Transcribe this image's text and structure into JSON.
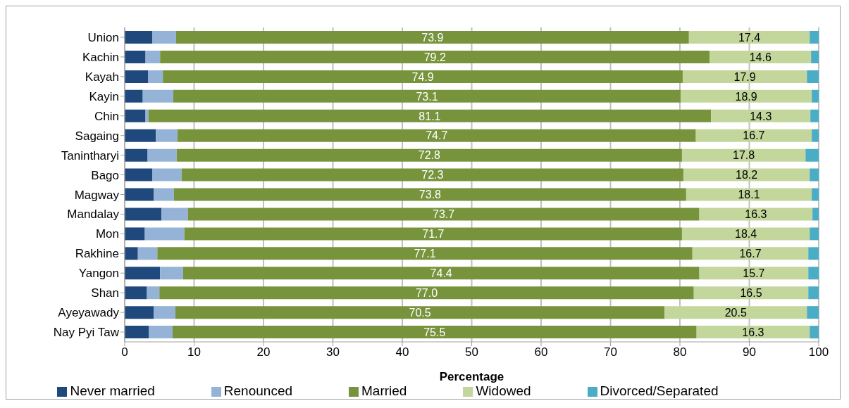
{
  "chart_data": {
    "type": "bar",
    "orientation": "horizontal",
    "stacked": true,
    "xlabel": "Percentage",
    "categories": [
      "Union",
      "Kachin",
      "Kayah",
      "Kayin",
      "Chin",
      "Sagaing",
      "Tanintharyi",
      "Bago",
      "Magway",
      "Mandalay",
      "Mon",
      "Rakhine",
      "Yangon",
      "Shan",
      "Ayeyawady",
      "Nay Pyi Taw"
    ],
    "series": [
      {
        "name": "Never married",
        "color": "#1f497d",
        "values": [
          4.0,
          3.0,
          3.4,
          2.6,
          3.0,
          4.5,
          3.3,
          4.0,
          4.2,
          5.3,
          2.9,
          1.9,
          5.1,
          3.2,
          4.2,
          3.5
        ]
      },
      {
        "name": "Renounced",
        "color": "#95b3d7",
        "values": [
          3.4,
          2.1,
          2.1,
          4.4,
          0.4,
          3.1,
          4.2,
          4.2,
          2.9,
          3.8,
          5.7,
          2.8,
          3.3,
          1.8,
          3.1,
          3.4
        ]
      },
      {
        "name": "Married",
        "color": "#77933c",
        "values": [
          73.9,
          79.2,
          74.9,
          73.1,
          81.1,
          74.7,
          72.8,
          72.3,
          73.8,
          73.7,
          71.7,
          77.1,
          74.4,
          77.0,
          70.5,
          75.5
        ],
        "value_labels": [
          "73.9",
          "79.2",
          "74.9",
          "73.1",
          "81.1",
          "74.7",
          "72.8",
          "72.3",
          "73.8",
          "73.7",
          "71.7",
          "77.1",
          "74.4",
          "77.0",
          "70.5",
          "75.5"
        ]
      },
      {
        "name": "Widowed",
        "color": "#c3d69b",
        "values": [
          17.4,
          14.6,
          17.9,
          18.9,
          14.3,
          16.7,
          17.8,
          18.2,
          18.1,
          16.3,
          18.4,
          16.7,
          15.7,
          16.5,
          20.5,
          16.3
        ],
        "value_labels": [
          "17.4",
          "14.6",
          "17.9",
          "18.9",
          "14.3",
          "16.7",
          "17.8",
          "18.2",
          "18.1",
          "16.3",
          "18.4",
          "16.7",
          "15.7",
          "16.5",
          "20.5",
          "16.3"
        ]
      },
      {
        "name": "Divorced/Separated",
        "color": "#4bacc6",
        "values": [
          1.3,
          1.1,
          1.7,
          1.0,
          1.2,
          1.0,
          1.9,
          1.3,
          1.0,
          0.9,
          1.3,
          1.5,
          1.5,
          1.5,
          1.7,
          1.3
        ]
      }
    ],
    "xlim": [
      0,
      100
    ],
    "xticks": [
      0,
      10,
      20,
      30,
      40,
      50,
      60,
      70,
      80,
      90,
      100
    ],
    "grid": "x",
    "legend": "bottom"
  }
}
